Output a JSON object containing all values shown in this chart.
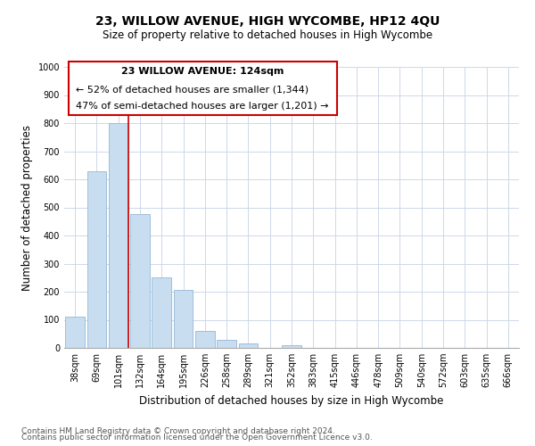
{
  "title": "23, WILLOW AVENUE, HIGH WYCOMBE, HP12 4QU",
  "subtitle": "Size of property relative to detached houses in High Wycombe",
  "xlabel": "Distribution of detached houses by size in High Wycombe",
  "ylabel": "Number of detached properties",
  "bar_labels": [
    "38sqm",
    "69sqm",
    "101sqm",
    "132sqm",
    "164sqm",
    "195sqm",
    "226sqm",
    "258sqm",
    "289sqm",
    "321sqm",
    "352sqm",
    "383sqm",
    "415sqm",
    "446sqm",
    "478sqm",
    "509sqm",
    "540sqm",
    "572sqm",
    "603sqm",
    "635sqm",
    "666sqm"
  ],
  "bar_values": [
    110,
    628,
    800,
    475,
    250,
    205,
    60,
    30,
    15,
    0,
    10,
    0,
    0,
    0,
    0,
    0,
    0,
    0,
    0,
    0,
    0
  ],
  "bar_color": "#c8ddf0",
  "bar_edge_color": "#94b8d8",
  "highlight_line_color": "#cc0000",
  "ylim": [
    0,
    1000
  ],
  "yticks": [
    0,
    100,
    200,
    300,
    400,
    500,
    600,
    700,
    800,
    900,
    1000
  ],
  "annotation_line1": "23 WILLOW AVENUE: 124sqm",
  "annotation_line2": "← 52% of detached houses are smaller (1,344)",
  "annotation_line3": "47% of semi-detached houses are larger (1,201) →",
  "footer_line1": "Contains HM Land Registry data © Crown copyright and database right 2024.",
  "footer_line2": "Contains public sector information licensed under the Open Government Licence v3.0.",
  "grid_color": "#cdd8e8",
  "background_color": "#ffffff",
  "title_fontsize": 10,
  "subtitle_fontsize": 8.5,
  "axis_label_fontsize": 8.5,
  "tick_fontsize": 7,
  "footer_fontsize": 6.5,
  "annotation_fontsize": 8
}
